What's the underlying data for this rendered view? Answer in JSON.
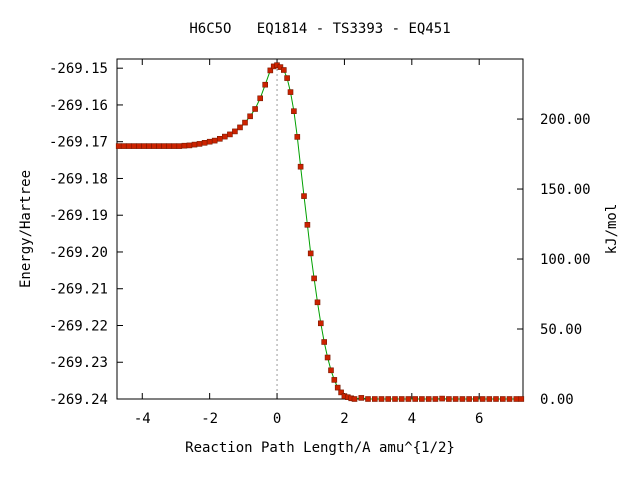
{
  "chart_data": {
    "type": "line",
    "title": "H6C5O   EQ1814 - TS3393 - EQ451",
    "xlabel": "Reaction Path Length/A amu^{1/2}",
    "ylabel": "Energy/Hartree",
    "y2label": "kJ/mol",
    "xlim": [
      -4.75,
      7.3
    ],
    "ylim": [
      -269.24,
      -269.1475
    ],
    "y2lim": [
      0.0,
      242.9
    ],
    "x_ticks": [
      -4,
      -2,
      0,
      2,
      4,
      6
    ],
    "x_tick_labels": [
      "-4",
      "-2",
      "0",
      "2",
      "4",
      "6"
    ],
    "y_ticks": [
      -269.15,
      -269.16,
      -269.17,
      -269.18,
      -269.19,
      -269.2,
      -269.21,
      -269.22,
      -269.23,
      -269.24
    ],
    "y_tick_labels": [
      "-269.15",
      "-269.16",
      "-269.17",
      "-269.18",
      "-269.19",
      "-269.20",
      "-269.21",
      "-269.22",
      "-269.23",
      "-269.24"
    ],
    "y2_ticks": [
      200.0,
      150.0,
      100.0,
      50.0,
      0.0
    ],
    "y2_tick_labels": [
      "200.00",
      "150.00",
      "100.00",
      "50.00",
      "0.00"
    ],
    "ts_marker_x": 0.0,
    "grid": false,
    "colors": {
      "line": "#00a000",
      "marker": "#cc2200",
      "marker_edge": "#7a1a00",
      "ts_line": "#999999",
      "axes": "#000000"
    },
    "series": [
      {
        "x": [
          -4.7,
          -4.55,
          -4.4,
          -4.25,
          -4.1,
          -3.95,
          -3.8,
          -3.65,
          -3.5,
          -3.35,
          -3.2,
          -3.05,
          -2.9,
          -2.75,
          -2.6,
          -2.45,
          -2.3,
          -2.15,
          -2.0,
          -1.85,
          -1.7,
          -1.55,
          -1.4,
          -1.25,
          -1.1,
          -0.95,
          -0.8,
          -0.65,
          -0.5,
          -0.35,
          -0.2,
          -0.1,
          0.0,
          0.1,
          0.2,
          0.3,
          0.4,
          0.5,
          0.6,
          0.7,
          0.8,
          0.9,
          1.0,
          1.1,
          1.2,
          1.3,
          1.4,
          1.5,
          1.6,
          1.7,
          1.8,
          1.9,
          2.0,
          2.1,
          2.2,
          2.3,
          2.5,
          2.7,
          2.9,
          3.1,
          3.3,
          3.5,
          3.7,
          3.9,
          4.1,
          4.3,
          4.5,
          4.7,
          4.9,
          5.1,
          5.3,
          5.5,
          5.7,
          5.9,
          6.1,
          6.3,
          6.5,
          6.7,
          6.9,
          7.1,
          7.25
        ],
        "values": [
          -269.1712,
          -269.1712,
          -269.1712,
          -269.1712,
          -269.1712,
          -269.1712,
          -269.1712,
          -269.1712,
          -269.1712,
          -269.1712,
          -269.1712,
          -269.1712,
          -269.1712,
          -269.1711,
          -269.171,
          -269.1708,
          -269.1706,
          -269.1703,
          -269.17,
          -269.1697,
          -269.1692,
          -269.1686,
          -269.168,
          -269.1672,
          -269.1661,
          -269.1648,
          -269.1631,
          -269.1611,
          -269.1582,
          -269.1545,
          -269.1506,
          -269.1495,
          -269.1492,
          -269.1497,
          -269.1505,
          -269.1527,
          -269.1565,
          -269.1617,
          -269.1687,
          -269.1768,
          -269.1848,
          -269.1926,
          -269.2004,
          -269.2072,
          -269.2137,
          -269.2194,
          -269.2245,
          -269.2287,
          -269.2322,
          -269.2348,
          -269.2369,
          -269.2382,
          -269.2392,
          -269.2395,
          -269.2398,
          -269.24,
          -269.2397,
          -269.24,
          -269.24,
          -269.24,
          -269.24,
          -269.24,
          -269.24,
          -269.24,
          -269.24,
          -269.24,
          -269.24,
          -269.24,
          -269.2399,
          -269.24,
          -269.24,
          -269.24,
          -269.24,
          -269.24,
          -269.24,
          -269.24,
          -269.24,
          -269.24,
          -269.24,
          -269.24,
          -269.24
        ]
      }
    ]
  }
}
